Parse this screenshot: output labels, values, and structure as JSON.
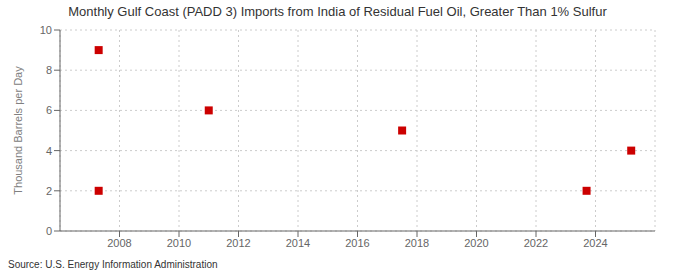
{
  "chart_data": {
    "type": "scatter",
    "title": "Monthly Gulf Coast (PADD 3) Imports from India of Residual Fuel Oil, Greater Than 1% Sulfur",
    "ylabel": "Thousand Barrels per Day",
    "annotation": "Source: U.S. Energy Information Administration",
    "x": [
      2007.3,
      2007.3,
      2011.0,
      2017.5,
      2023.7,
      2025.2
    ],
    "values": [
      9,
      2,
      6,
      5,
      2,
      4
    ],
    "color": "#cc0000",
    "marker": "square",
    "xlim": [
      2006.0,
      2026.0
    ],
    "ylim": [
      0,
      10
    ],
    "xticks": [
      2008,
      2010,
      2012,
      2014,
      2016,
      2018,
      2020,
      2022,
      2024
    ],
    "yticks": [
      0,
      2,
      4,
      6,
      8,
      10
    ],
    "grid": true
  }
}
